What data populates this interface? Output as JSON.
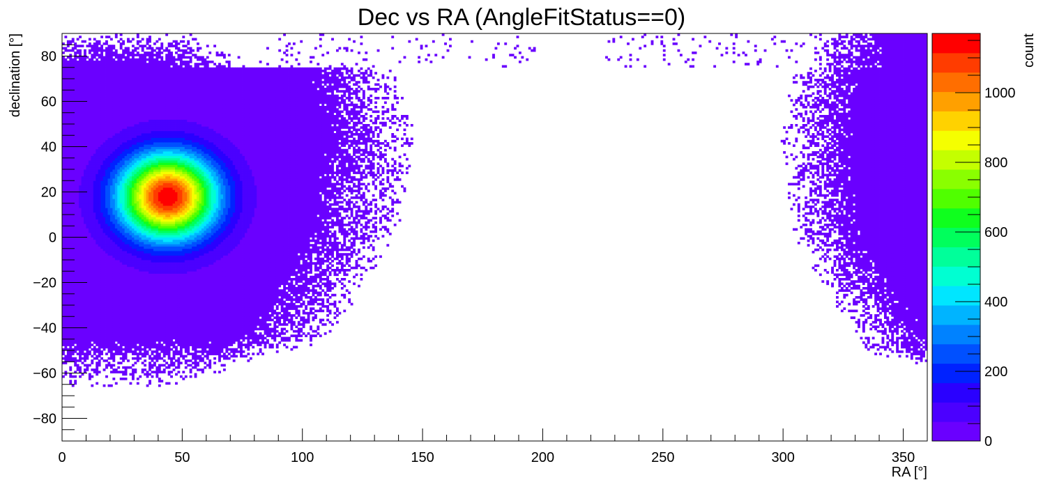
{
  "chart_data": {
    "type": "heatmap",
    "title": "Dec vs RA (AngleFitStatus==0)",
    "xlabel": "RA [°]",
    "ylabel": "declination [°]",
    "zlabel": "count",
    "xlim": [
      0,
      360
    ],
    "ylim": [
      -90,
      90
    ],
    "zlim": [
      0,
      1170
    ],
    "x_ticks": [
      {
        "value": 0,
        "label": "0"
      },
      {
        "value": 50,
        "label": "50"
      },
      {
        "value": 100,
        "label": "100"
      },
      {
        "value": 150,
        "label": "150"
      },
      {
        "value": 200,
        "label": "200"
      },
      {
        "value": 250,
        "label": "250"
      },
      {
        "value": 300,
        "label": "300"
      },
      {
        "value": 350,
        "label": "350"
      }
    ],
    "y_ticks": [
      {
        "value": 80,
        "label": "80"
      },
      {
        "value": 60,
        "label": "60"
      },
      {
        "value": 40,
        "label": "40"
      },
      {
        "value": 20,
        "label": "20"
      },
      {
        "value": 0,
        "label": "0"
      },
      {
        "value": -20,
        "label": "−20"
      },
      {
        "value": -40,
        "label": "−40"
      },
      {
        "value": -60,
        "label": "−60"
      },
      {
        "value": -80,
        "label": "−80"
      }
    ],
    "z_ticks": [
      {
        "value": 0,
        "label": "0"
      },
      {
        "value": 200,
        "label": "200"
      },
      {
        "value": 400,
        "label": "400"
      },
      {
        "value": 600,
        "label": "600"
      },
      {
        "value": 800,
        "label": "800"
      },
      {
        "value": 1000,
        "label": "1000"
      }
    ],
    "palette": [
      "#6a00ff",
      "#4b00ff",
      "#2a00ff",
      "#0022ff",
      "#0050ff",
      "#0082ff",
      "#00b4ff",
      "#00e6ff",
      "#00ffd2",
      "#00ff9a",
      "#00ff5c",
      "#0fff1e",
      "#50ff00",
      "#8aff00",
      "#c4ff00",
      "#f5ff00",
      "#ffd200",
      "#ffa000",
      "#ff6e00",
      "#ff3c00",
      "#ff0000"
    ],
    "features": [
      {
        "kind": "peak",
        "ra": 44,
        "dec": 18,
        "max_count": 1150,
        "sigma_ra": 14,
        "sigma_dec": 13
      },
      {
        "kind": "band_edge_left",
        "note": "events populate RA 0–130 across dec −65 to 90"
      },
      {
        "kind": "band_edge_right",
        "note": "events populate RA 305–360 across dec −60 to 90"
      }
    ]
  }
}
